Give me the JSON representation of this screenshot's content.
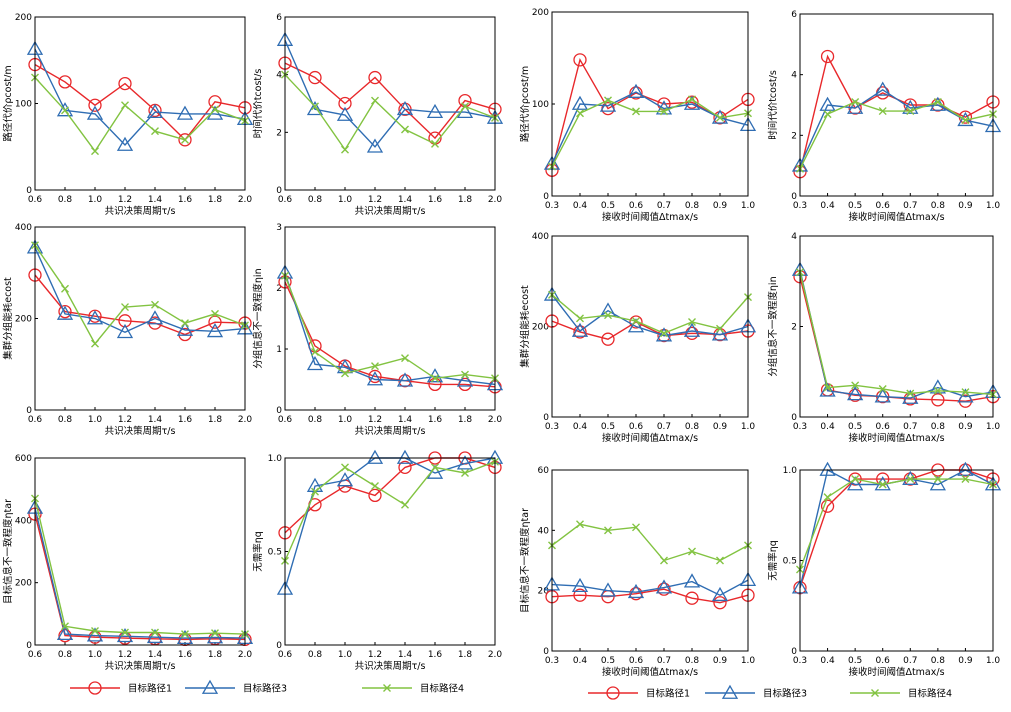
{
  "colors": {
    "path1": "#e8282b",
    "path3": "#2f6db3",
    "path4": "#82c341"
  },
  "legends": [
    {
      "items": [
        {
          "label": "目标路径1",
          "marker": "circle",
          "color": "#e8282b"
        },
        {
          "label": "目标路径3",
          "marker": "triangle",
          "color": "#2f6db3"
        },
        {
          "label": "目标路径4",
          "marker": "x",
          "color": "#82c341"
        }
      ]
    },
    {
      "items": [
        {
          "label": "目标路径1",
          "marker": "circle",
          "color": "#e8282b"
        },
        {
          "label": "目标路径3",
          "marker": "triangle",
          "color": "#2f6db3"
        },
        {
          "label": "目标路径4",
          "marker": "x",
          "color": "#82c341"
        }
      ]
    }
  ],
  "chart_data": [
    {
      "type": "line",
      "xlabel": "共识决策周期τ/s",
      "ylabel": "路径代价ρcost/m",
      "x": [
        0.6,
        0.8,
        1.0,
        1.2,
        1.4,
        1.6,
        1.8,
        2.0
      ],
      "xticks": [
        "0.6",
        "0.8",
        "1.0",
        "1.2",
        "1.4",
        "1.6",
        "1.8",
        "2.0"
      ],
      "xlim": [
        0.6,
        2.0
      ],
      "ylim": [
        0,
        200
      ],
      "yticks": [
        "0",
        "100",
        "200"
      ],
      "ytick_values": [
        0,
        100,
        200
      ],
      "series": [
        {
          "name": "目标路径1",
          "marker": "circle",
          "values": [
            145,
            125,
            98,
            123,
            92,
            58,
            102,
            95
          ]
        },
        {
          "name": "目标路径3",
          "marker": "triangle",
          "values": [
            163,
            92,
            88,
            52,
            90,
            88,
            88,
            82
          ]
        },
        {
          "name": "目标路径4",
          "marker": "x",
          "values": [
            130,
            92,
            45,
            98,
            68,
            58,
            93,
            80
          ]
        }
      ]
    },
    {
      "type": "line",
      "xlabel": "共识决策周期τ/s",
      "ylabel": "时间代价tcost/s",
      "x": [
        0.6,
        0.8,
        1.0,
        1.2,
        1.4,
        1.6,
        1.8,
        2.0
      ],
      "xticks": [
        "0.6",
        "0.8",
        "1.0",
        "1.2",
        "1.4",
        "1.6",
        "1.8",
        "2.0"
      ],
      "xlim": [
        0.6,
        2.0
      ],
      "ylim": [
        0,
        6
      ],
      "yticks": [
        "0",
        "2",
        "4",
        "6"
      ],
      "ytick_values": [
        0,
        2,
        4,
        6
      ],
      "series": [
        {
          "name": "目标路径1",
          "marker": "circle",
          "values": [
            4.4,
            3.9,
            3.0,
            3.9,
            2.8,
            1.8,
            3.1,
            2.8
          ]
        },
        {
          "name": "目标路径3",
          "marker": "triangle",
          "values": [
            5.2,
            2.8,
            2.6,
            1.5,
            2.8,
            2.7,
            2.7,
            2.5
          ]
        },
        {
          "name": "目标路径4",
          "marker": "x",
          "values": [
            4.0,
            2.9,
            1.4,
            3.1,
            2.1,
            1.6,
            2.9,
            2.5
          ]
        }
      ]
    },
    {
      "type": "line",
      "xlabel": "接收时间阈值Δtmax/s",
      "ylabel": "路径代价ρcost/m",
      "x": [
        0.3,
        0.4,
        0.5,
        0.6,
        0.7,
        0.8,
        0.9,
        1.0
      ],
      "xticks": [
        "0.3",
        "0.4",
        "0.5",
        "0.6",
        "0.7",
        "0.8",
        "0.9",
        "1.0"
      ],
      "xlim": [
        0.3,
        1.0
      ],
      "ylim": [
        0,
        200
      ],
      "yticks": [
        "0",
        "100",
        "200"
      ],
      "ytick_values": [
        0,
        100,
        200
      ],
      "series": [
        {
          "name": "目标路径1",
          "marker": "circle",
          "values": [
            28,
            148,
            95,
            112,
            100,
            102,
            85,
            105
          ]
        },
        {
          "name": "目标路径3",
          "marker": "triangle",
          "values": [
            35,
            100,
            98,
            113,
            95,
            100,
            85,
            77
          ]
        },
        {
          "name": "目标路径4",
          "marker": "x",
          "values": [
            32,
            90,
            104,
            92,
            92,
            105,
            85,
            90
          ]
        }
      ]
    },
    {
      "type": "line",
      "xlabel": "接收时间阈值Δtmax/s",
      "ylabel": "时间代价tcost/s",
      "x": [
        0.3,
        0.4,
        0.5,
        0.6,
        0.7,
        0.8,
        0.9,
        1.0
      ],
      "xticks": [
        "0.3",
        "0.4",
        "0.5",
        "0.6",
        "0.7",
        "0.8",
        "0.9",
        "1.0"
      ],
      "xlim": [
        0.3,
        1.0
      ],
      "ylim": [
        0,
        6
      ],
      "yticks": [
        "0",
        "2",
        "4",
        "6"
      ],
      "ytick_values": [
        0,
        2,
        4,
        6
      ],
      "series": [
        {
          "name": "目标路径1",
          "marker": "circle",
          "values": [
            0.8,
            4.6,
            2.9,
            3.4,
            3.0,
            3.0,
            2.6,
            3.1
          ]
        },
        {
          "name": "目标路径3",
          "marker": "triangle",
          "values": [
            1.0,
            3.0,
            2.9,
            3.5,
            2.9,
            3.0,
            2.5,
            2.3
          ]
        },
        {
          "name": "目标路径4",
          "marker": "x",
          "values": [
            0.9,
            2.7,
            3.1,
            2.8,
            2.8,
            3.1,
            2.5,
            2.7
          ]
        }
      ]
    },
    {
      "type": "line",
      "xlabel": "共识决策周期τ/s",
      "ylabel": "集群分组能耗ecost",
      "x": [
        0.6,
        0.8,
        1.0,
        1.2,
        1.4,
        1.6,
        1.8,
        2.0
      ],
      "xticks": [
        "0.6",
        "0.8",
        "1.0",
        "1.2",
        "1.4",
        "1.6",
        "1.8",
        "2.0"
      ],
      "xlim": [
        0.6,
        2.0
      ],
      "ylim": [
        0,
        400
      ],
      "yticks": [
        "0",
        "200",
        "400"
      ],
      "ytick_values": [
        0,
        200,
        400
      ],
      "series": [
        {
          "name": "目标路径1",
          "marker": "circle",
          "values": [
            295,
            215,
            205,
            195,
            190,
            165,
            192,
            190
          ]
        },
        {
          "name": "目标路径3",
          "marker": "triangle",
          "values": [
            355,
            210,
            200,
            170,
            200,
            175,
            172,
            178
          ]
        },
        {
          "name": "目标路径4",
          "marker": "x",
          "values": [
            360,
            265,
            145,
            225,
            230,
            190,
            210,
            185
          ]
        }
      ]
    },
    {
      "type": "line",
      "xlabel": "共识决策周期τ/s",
      "ylabel": "分组信息不一致程度ηin",
      "x": [
        0.6,
        0.8,
        1.0,
        1.2,
        1.4,
        1.6,
        1.8,
        2.0
      ],
      "xticks": [
        "0.6",
        "0.8",
        "1.0",
        "1.2",
        "1.4",
        "1.6",
        "1.8",
        "2.0"
      ],
      "xlim": [
        0.6,
        2.0
      ],
      "ylim": [
        0,
        3
      ],
      "yticks": [
        "0",
        "1",
        "2",
        "3"
      ],
      "ytick_values": [
        0,
        1,
        2,
        3
      ],
      "series": [
        {
          "name": "目标路径1",
          "marker": "circle",
          "values": [
            2.1,
            1.05,
            0.72,
            0.55,
            0.48,
            0.42,
            0.42,
            0.38
          ]
        },
        {
          "name": "目标路径3",
          "marker": "triangle",
          "values": [
            2.25,
            0.75,
            0.7,
            0.5,
            0.48,
            0.55,
            0.48,
            0.42
          ]
        },
        {
          "name": "目标路径4",
          "marker": "x",
          "values": [
            2.2,
            0.95,
            0.6,
            0.72,
            0.85,
            0.52,
            0.58,
            0.52
          ]
        }
      ]
    },
    {
      "type": "line",
      "xlabel": "接收时间阈值Δtmax/s",
      "ylabel": "集群分组能耗ecost",
      "x": [
        0.3,
        0.4,
        0.5,
        0.6,
        0.7,
        0.8,
        0.9,
        1.0
      ],
      "xticks": [
        "0.3",
        "0.4",
        "0.5",
        "0.6",
        "0.7",
        "0.8",
        "0.9",
        "1.0"
      ],
      "xlim": [
        0.3,
        1.0
      ],
      "ylim": [
        0,
        400
      ],
      "yticks": [
        "0",
        "200",
        "400"
      ],
      "ytick_values": [
        0,
        200,
        400
      ],
      "series": [
        {
          "name": "目标路径1",
          "marker": "circle",
          "values": [
            212,
            188,
            172,
            210,
            180,
            185,
            182,
            190
          ]
        },
        {
          "name": "目标路径3",
          "marker": "triangle",
          "values": [
            270,
            190,
            235,
            200,
            180,
            190,
            182,
            200
          ]
        },
        {
          "name": "目标路径4",
          "marker": "x",
          "values": [
            270,
            218,
            225,
            212,
            185,
            210,
            195,
            265
          ]
        }
      ]
    },
    {
      "type": "line",
      "xlabel": "接收时间阈值Δtmax/s",
      "ylabel": "分组信息不一致程度ηin",
      "x": [
        0.3,
        0.4,
        0.5,
        0.6,
        0.7,
        0.8,
        0.9,
        1.0
      ],
      "xticks": [
        "0.3",
        "0.4",
        "0.5",
        "0.6",
        "0.7",
        "0.8",
        "0.9",
        "1.0"
      ],
      "xlim": [
        0.3,
        1.0
      ],
      "ylim": [
        0,
        4
      ],
      "yticks": [
        "0",
        "2",
        "4"
      ],
      "ytick_values": [
        0,
        2,
        4
      ],
      "series": [
        {
          "name": "目标路径1",
          "marker": "circle",
          "values": [
            3.1,
            0.6,
            0.48,
            0.45,
            0.4,
            0.38,
            0.35,
            0.45
          ]
        },
        {
          "name": "目标路径3",
          "marker": "triangle",
          "values": [
            3.25,
            0.58,
            0.5,
            0.45,
            0.42,
            0.65,
            0.45,
            0.55
          ]
        },
        {
          "name": "目标路径4",
          "marker": "x",
          "values": [
            3.2,
            0.65,
            0.7,
            0.62,
            0.52,
            0.58,
            0.55,
            0.5
          ]
        }
      ]
    },
    {
      "type": "line",
      "xlabel": "共识决策周期τ/s",
      "ylabel": "目标信息不一致程度ηtar",
      "x": [
        0.6,
        0.8,
        1.0,
        1.2,
        1.4,
        1.6,
        1.8,
        2.0
      ],
      "xticks": [
        "0.6",
        "0.8",
        "1.0",
        "1.2",
        "1.4",
        "1.6",
        "1.8",
        "2.0"
      ],
      "xlim": [
        0.6,
        2.0
      ],
      "ylim": [
        0,
        600
      ],
      "yticks": [
        "0",
        "200",
        "400",
        "600"
      ],
      "ytick_values": [
        0,
        200,
        400,
        600
      ],
      "series": [
        {
          "name": "目标路径1",
          "marker": "circle",
          "values": [
            420,
            30,
            25,
            22,
            20,
            18,
            20,
            18
          ]
        },
        {
          "name": "目标路径3",
          "marker": "triangle",
          "values": [
            440,
            35,
            30,
            28,
            25,
            22,
            24,
            22
          ]
        },
        {
          "name": "目标路径4",
          "marker": "x",
          "values": [
            470,
            60,
            45,
            40,
            40,
            35,
            38,
            35
          ]
        }
      ]
    },
    {
      "type": "line",
      "xlabel": "共识决策周期τ/s",
      "ylabel": "无需率ηq",
      "x": [
        0.6,
        0.8,
        1.0,
        1.2,
        1.4,
        1.6,
        1.8,
        2.0
      ],
      "xticks": [
        "0.6",
        "0.8",
        "1.0",
        "1.2",
        "1.4",
        "1.6",
        "1.8",
        "2.0"
      ],
      "xlim": [
        0.6,
        2.0
      ],
      "ylim": [
        0,
        1
      ],
      "yticks": [
        "0",
        "0.5",
        "1.0"
      ],
      "ytick_values": [
        0,
        0.5,
        1.0
      ],
      "series": [
        {
          "name": "目标路径1",
          "marker": "circle",
          "values": [
            0.6,
            0.75,
            0.85,
            0.8,
            0.95,
            1.0,
            1.0,
            0.95
          ]
        },
        {
          "name": "目标路径3",
          "marker": "triangle",
          "values": [
            0.3,
            0.85,
            0.88,
            1.0,
            1.0,
            0.92,
            0.97,
            1.0
          ]
        },
        {
          "name": "目标路径4",
          "marker": "x",
          "values": [
            0.45,
            0.82,
            0.95,
            0.85,
            0.75,
            0.95,
            0.92,
            0.98
          ]
        }
      ]
    },
    {
      "type": "line",
      "xlabel": "接收时间阈值Δtmax/s",
      "ylabel": "目标信息不一致程度ηtar",
      "x": [
        0.3,
        0.4,
        0.5,
        0.6,
        0.7,
        0.8,
        0.9,
        1.0
      ],
      "xticks": [
        "0.3",
        "0.4",
        "0.5",
        "0.6",
        "0.7",
        "0.8",
        "0.9",
        "1.0"
      ],
      "xlim": [
        0.3,
        1.0
      ],
      "ylim": [
        0,
        60
      ],
      "yticks": [
        "0",
        "20",
        "40",
        "60"
      ],
      "ytick_values": [
        0,
        20,
        40,
        60
      ],
      "series": [
        {
          "name": "目标路径1",
          "marker": "circle",
          "values": [
            18,
            18.5,
            18,
            19,
            20.5,
            17.5,
            16,
            18.5
          ]
        },
        {
          "name": "目标路径3",
          "marker": "triangle",
          "values": [
            22,
            21.5,
            20,
            19.5,
            21,
            23,
            18.5,
            23.5
          ]
        },
        {
          "name": "目标路径4",
          "marker": "x",
          "values": [
            35,
            42,
            40,
            41,
            30,
            33,
            30,
            35
          ]
        }
      ]
    },
    {
      "type": "line",
      "xlabel": "接收时间阈值Δtmax/s",
      "ylabel": "无需率ηq",
      "x": [
        0.3,
        0.4,
        0.5,
        0.6,
        0.7,
        0.8,
        0.9,
        1.0
      ],
      "xticks": [
        "0.3",
        "0.4",
        "0.5",
        "0.6",
        "0.7",
        "0.8",
        "0.9",
        "1.0"
      ],
      "xlim": [
        0.3,
        1.0
      ],
      "ylim": [
        0,
        1
      ],
      "yticks": [
        "0",
        "0.5",
        "1.0"
      ],
      "ytick_values": [
        0,
        0.5,
        1.0
      ],
      "series": [
        {
          "name": "目标路径1",
          "marker": "circle",
          "values": [
            0.35,
            0.8,
            0.95,
            0.95,
            0.95,
            1.0,
            1.0,
            0.95
          ]
        },
        {
          "name": "目标路径3",
          "marker": "triangle",
          "values": [
            0.35,
            1.0,
            0.92,
            0.92,
            0.95,
            0.92,
            1.0,
            0.92
          ]
        },
        {
          "name": "目标路径4",
          "marker": "x",
          "values": [
            0.45,
            0.85,
            0.95,
            0.92,
            0.95,
            0.95,
            0.95,
            0.92
          ]
        }
      ]
    }
  ]
}
